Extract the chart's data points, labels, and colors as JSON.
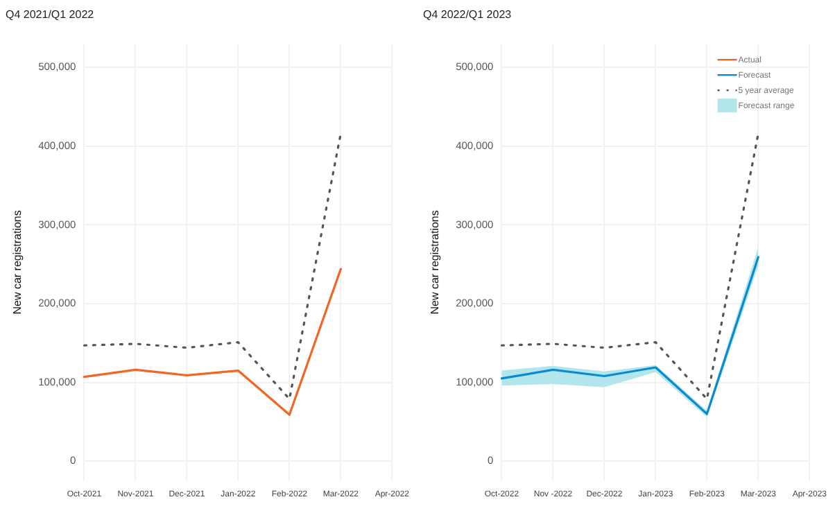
{
  "chart_data": [
    {
      "type": "line",
      "title": "Q4 2021/Q1 2022",
      "ylabel": "New car registrations",
      "categories": [
        "Oct-2021",
        "Nov-2021",
        "Dec-2021",
        "Jan-2022",
        "Feb-2022",
        "Mar-2022",
        "Apr-2022"
      ],
      "series": [
        {
          "color": "#f26522",
          "values": [
            107000,
            116000,
            109000,
            115000,
            59000,
            244000,
            null
          ]
        },
        {
          "color": "#555555",
          "line_style": "dotted",
          "values": [
            147000,
            149000,
            144000,
            151000,
            79000,
            416000,
            null
          ]
        }
      ],
      "ylim": [
        -25000,
        530000
      ],
      "yticks": [
        0,
        {
          "value": 100000,
          "label": "100,000"
        },
        {
          "value": 200000,
          "label": "200,000"
        },
        {
          "value": 300000,
          "label": "300,000"
        },
        {
          "value": 400000,
          "label": "400,000"
        },
        {
          "value": 500000,
          "label": "500,000"
        }
      ],
      "grid": true,
      "marker": "none",
      "line_style": "solid"
    },
    {
      "type": "line",
      "title": "Q4 2022/Q1 2023",
      "ylabel": "New car registrations",
      "categories": [
        "Oct-2022",
        "Nov -2022",
        "Dec-2022",
        "Jan-2023",
        "Feb-2023",
        "Mar-2023",
        "Apr-2023"
      ],
      "series": [
        {
          "name": "Actual",
          "color": "#f26522",
          "values": [
            null,
            null,
            null,
            null,
            null,
            null,
            null
          ]
        },
        {
          "name": "Forecast",
          "color": "#0a8bd0",
          "values": [
            105000,
            116000,
            108000,
            119000,
            60000,
            259000,
            null
          ]
        },
        {
          "name": "5 year average",
          "color": "#555555",
          "line_style": "dotted",
          "values": [
            147000,
            149000,
            144000,
            151000,
            79000,
            416000,
            null
          ]
        },
        {
          "name": "Forecast range",
          "type": "area",
          "color": "#b3e6ec",
          "values": [
            null,
            null,
            null,
            null,
            null,
            null,
            null
          ],
          "lower": [
            96000,
            98000,
            94000,
            113000,
            56000,
            248000,
            null
          ],
          "upper": [
            115000,
            121000,
            114000,
            122000,
            64000,
            272000,
            null
          ]
        }
      ],
      "ylim": [
        -25000,
        530000
      ],
      "yticks": [
        0,
        {
          "value": 100000,
          "label": "100,000"
        },
        {
          "value": 200000,
          "label": "200,000"
        },
        {
          "value": 300000,
          "label": "300,000"
        },
        {
          "value": 400000,
          "label": "400,000"
        },
        {
          "value": 500000,
          "label": "500,000"
        }
      ],
      "grid": true,
      "legend": "top right",
      "marker": "none",
      "line_style": "solid"
    }
  ]
}
